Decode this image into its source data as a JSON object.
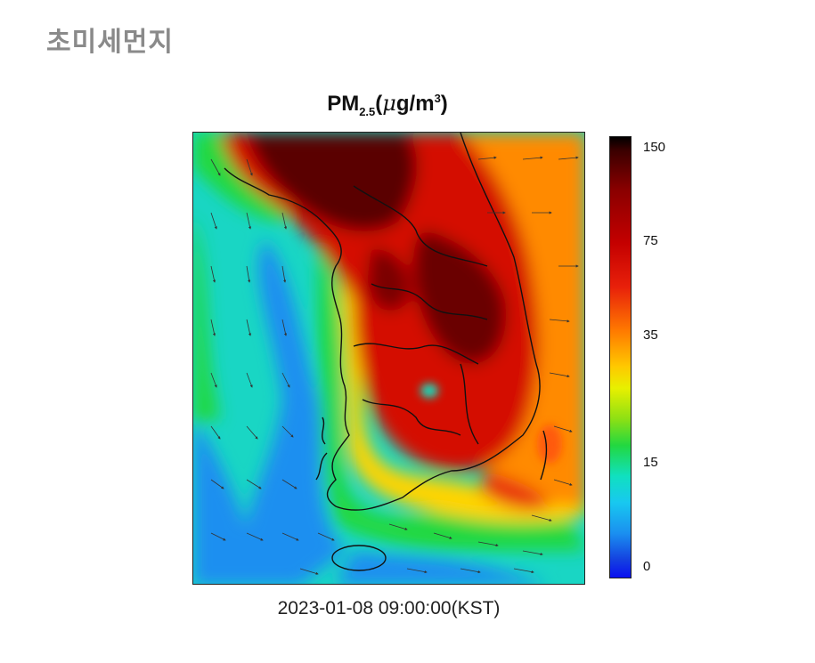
{
  "page": {
    "title": "초미세먼지"
  },
  "map": {
    "title_main": "PM",
    "title_sub": "2.5",
    "title_open": "(",
    "title_mu": "μ",
    "title_unit": "g/m",
    "title_sup": "3",
    "title_close": ")",
    "timestamp": "2023-01-08 09:00:00(KST)"
  },
  "legend": {
    "ticks": [
      "150",
      "75",
      "35",
      "15",
      "0"
    ]
  },
  "colors": {
    "sea_low": "#1a8ff0",
    "sea_mid": "#10e0c0",
    "land_high": "#c40000",
    "land_peak": "#3a0000",
    "moderate": "#ffc800",
    "good": "#22d840"
  }
}
